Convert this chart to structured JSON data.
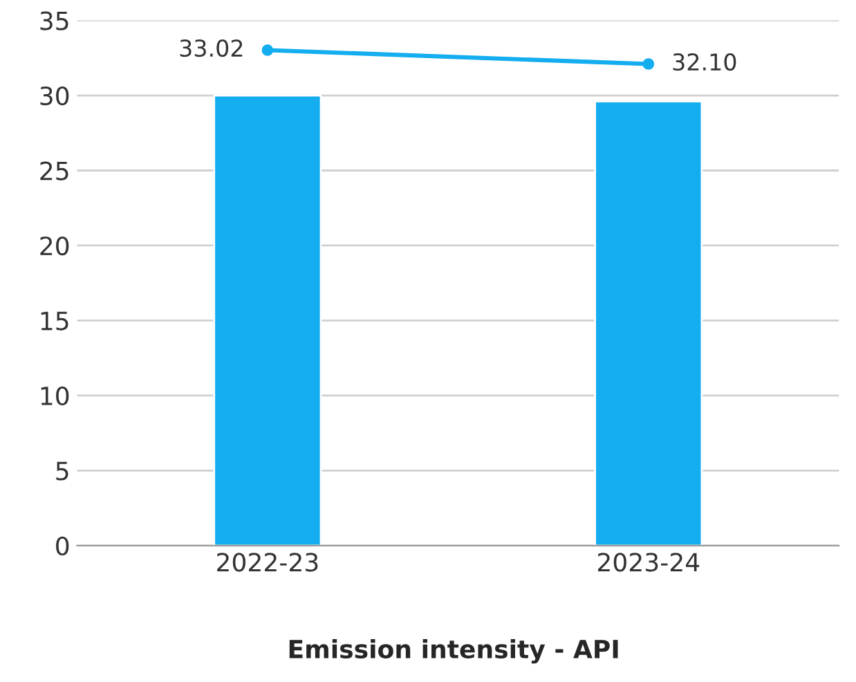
{
  "chart_data": {
    "type": "bar",
    "title": "Emission intensity - API",
    "categories": [
      "2022-23",
      "2023-24"
    ],
    "series": [
      {
        "color": "#13adf0",
        "values": [
          30.0,
          29.6
        ]
      },
      {
        "type": "line",
        "color": "#13adf0",
        "values": [
          33.02,
          32.1
        ],
        "value_labels": [
          "33.02",
          "32.10"
        ],
        "marker": "circle"
      }
    ],
    "ylim": [
      0,
      35
    ],
    "yticks": [
      0,
      5,
      10,
      15,
      20,
      25,
      30,
      35
    ],
    "grid": "y",
    "legend": false
  }
}
